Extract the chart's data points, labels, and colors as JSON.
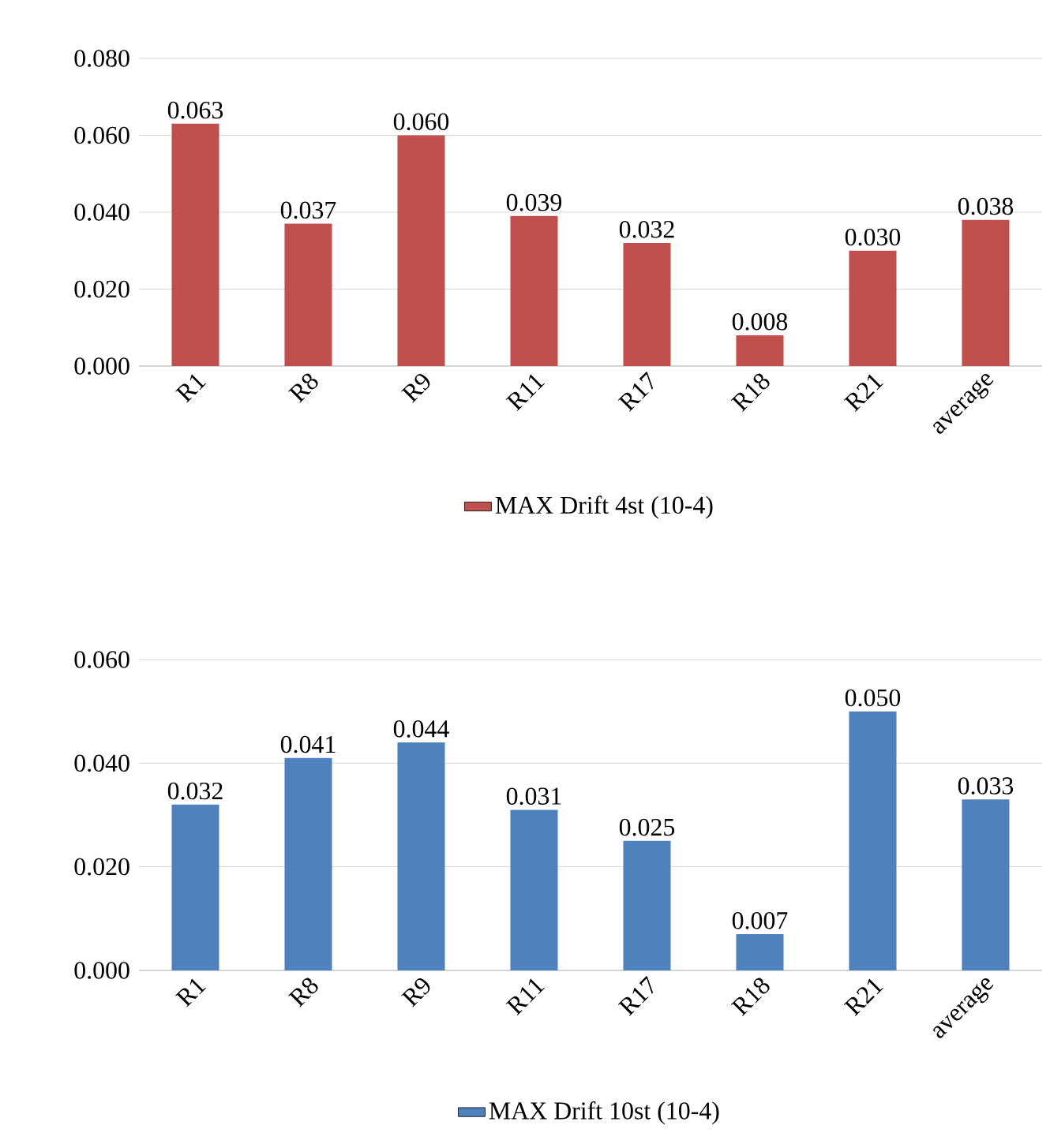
{
  "chart_data": [
    {
      "type": "bar",
      "categories": [
        "R1",
        "R8",
        "R9",
        "R11",
        "R17",
        "R18",
        "R21",
        "average"
      ],
      "series": [
        {
          "name": "MAX Drift 4st (10-4)",
          "color": "#c0504d",
          "values": [
            0.063,
            0.037,
            0.06,
            0.039,
            0.032,
            0.008,
            0.03,
            0.038
          ],
          "value_labels": [
            "0.063",
            "0.037",
            "0.060",
            "0.039",
            "0.032",
            "0.008",
            "0.030",
            "0.038"
          ]
        }
      ],
      "ylim": [
        0,
        0.08
      ],
      "yticks": [
        {
          "value": 0,
          "label": "0.000"
        },
        {
          "value": 0.02,
          "label": "0.020"
        },
        {
          "value": 0.04,
          "label": "0.040"
        },
        {
          "value": 0.06,
          "label": "0.060"
        },
        {
          "value": 0.08,
          "label": "0.080"
        }
      ],
      "grid": "y",
      "legend": "bottom"
    },
    {
      "type": "bar",
      "categories": [
        "R1",
        "R8",
        "R9",
        "R11",
        "R17",
        "R18",
        "R21",
        "average"
      ],
      "series": [
        {
          "name": "MAX Drift 10st (10-4)",
          "color": "#4f81bd",
          "values": [
            0.032,
            0.041,
            0.044,
            0.031,
            0.025,
            0.007,
            0.05,
            0.033
          ],
          "value_labels": [
            "0.032",
            "0.041",
            "0.044",
            "0.031",
            "0.025",
            "0.007",
            "0.050",
            "0.033"
          ]
        }
      ],
      "ylim": [
        0,
        0.06
      ],
      "yticks": [
        {
          "value": 0,
          "label": "0.000"
        },
        {
          "value": 0.02,
          "label": "0.020"
        },
        {
          "value": 0.04,
          "label": "0.040"
        },
        {
          "value": 0.06,
          "label": "0.060"
        }
      ],
      "grid": "y",
      "legend": "bottom"
    }
  ]
}
